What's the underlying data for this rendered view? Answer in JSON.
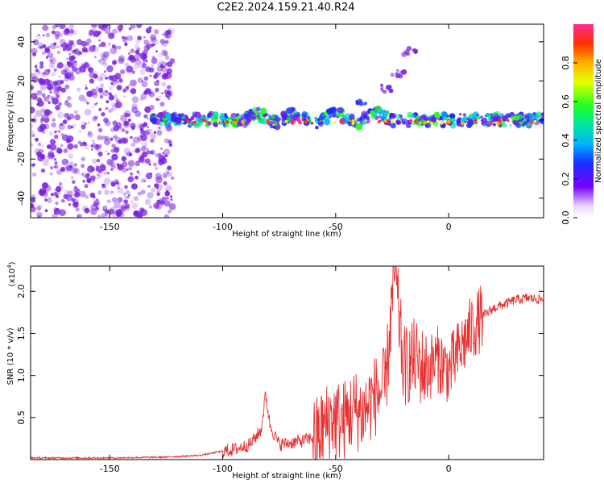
{
  "title": "C2E2.2024.159.21.40.R24",
  "colors": {
    "points": "#7a1fe0",
    "snr_line": "#e83030",
    "axis": "#000000"
  },
  "colorbar": {
    "label": "Normalized spectral amplitude",
    "ticks": [
      "0.0",
      "0.2",
      "0.4",
      "0.6",
      "0.8"
    ],
    "tick_values": [
      0.0,
      0.2,
      0.4,
      0.6,
      0.8
    ],
    "range": [
      0,
      1
    ]
  },
  "chart_data": [
    {
      "type": "heatmap",
      "xlabel": "Height of straight line (km)",
      "ylabel": "Frequency (Hz)",
      "xlim": [
        -185,
        42
      ],
      "ylim": [
        -50,
        49
      ],
      "xticks": [
        -150,
        -100,
        -50,
        0
      ],
      "xtick_labels": [
        "-150",
        "-100",
        "-50",
        "0"
      ],
      "yticks": [
        -40,
        -20,
        0,
        20,
        40
      ],
      "ytick_labels": [
        "-40",
        "-20",
        "0",
        "20",
        "40"
      ],
      "noise_region_x": [
        -185,
        -122
      ],
      "signal_band": {
        "x_start": -132,
        "x_end": 42,
        "frequency_center": 0,
        "frequency_halfwidth": 3
      },
      "rising_streak": [
        {
          "x": -50,
          "y": 4
        },
        {
          "x": -38,
          "y": 10
        },
        {
          "x": -28,
          "y": 16
        },
        {
          "x": -22,
          "y": 24
        },
        {
          "x": -17,
          "y": 35
        }
      ]
    },
    {
      "type": "line",
      "xlabel": "Height of straight line (km)",
      "ylabel": "SNR (10 * v/v)",
      "scale_note": "(x10",
      "scale_exp": "4",
      "xlim": [
        -185,
        42
      ],
      "ylim": [
        0,
        2.3
      ],
      "xticks": [
        -150,
        -100,
        -50,
        0
      ],
      "xtick_labels": [
        "-150",
        "-100",
        "-50",
        "0"
      ],
      "yticks": [
        0.5,
        1.0,
        1.5,
        2.0
      ],
      "ytick_labels": [
        "0.5",
        "1.0",
        "1.5",
        "2.0"
      ],
      "series": [
        {
          "values": [
            {
              "x": -185,
              "y": 0.02
            },
            {
              "x": -150,
              "y": 0.02
            },
            {
              "x": -125,
              "y": 0.03
            },
            {
              "x": -110,
              "y": 0.05
            },
            {
              "x": -100,
              "y": 0.1
            },
            {
              "x": -95,
              "y": 0.12
            },
            {
              "x": -88,
              "y": 0.18
            },
            {
              "x": -83,
              "y": 0.35
            },
            {
              "x": -81,
              "y": 0.78
            },
            {
              "x": -79,
              "y": 0.4
            },
            {
              "x": -75,
              "y": 0.18
            },
            {
              "x": -65,
              "y": 0.22
            },
            {
              "x": -58,
              "y": 0.28
            },
            {
              "x": -52,
              "y": 0.5
            },
            {
              "x": -47,
              "y": 0.45
            },
            {
              "x": -42,
              "y": 0.6
            },
            {
              "x": -38,
              "y": 0.55
            },
            {
              "x": -33,
              "y": 0.75
            },
            {
              "x": -28,
              "y": 0.85
            },
            {
              "x": -24,
              "y": 2.25
            },
            {
              "x": -20,
              "y": 1.1
            },
            {
              "x": -15,
              "y": 1.2
            },
            {
              "x": -10,
              "y": 1.05
            },
            {
              "x": -5,
              "y": 1.2
            },
            {
              "x": 0,
              "y": 1.05
            },
            {
              "x": 5,
              "y": 1.3
            },
            {
              "x": 10,
              "y": 1.55
            },
            {
              "x": 15,
              "y": 1.7
            },
            {
              "x": 20,
              "y": 1.8
            },
            {
              "x": 25,
              "y": 1.85
            },
            {
              "x": 30,
              "y": 1.9
            },
            {
              "x": 35,
              "y": 1.92
            },
            {
              "x": 42,
              "y": 1.9
            }
          ]
        }
      ]
    }
  ]
}
